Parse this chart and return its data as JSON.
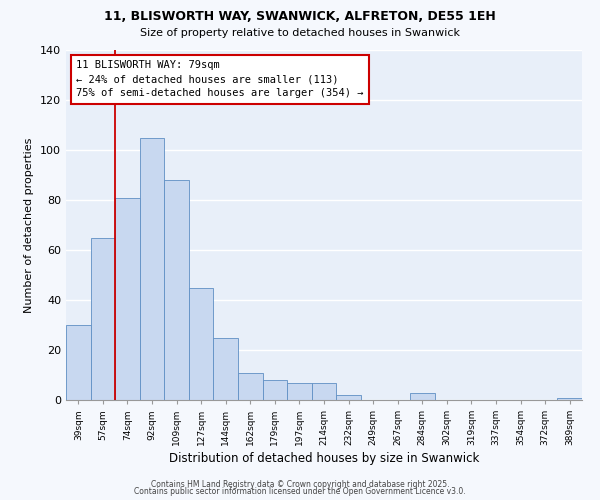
{
  "title1": "11, BLISWORTH WAY, SWANWICK, ALFRETON, DE55 1EH",
  "title2": "Size of property relative to detached houses in Swanwick",
  "xlabel": "Distribution of detached houses by size in Swanwick",
  "ylabel": "Number of detached properties",
  "bar_color": "#c8d8f0",
  "bar_edge_color": "#5f8fc4",
  "background_color": "#e8eff9",
  "grid_color": "#ffffff",
  "categories": [
    "39sqm",
    "57sqm",
    "74sqm",
    "92sqm",
    "109sqm",
    "127sqm",
    "144sqm",
    "162sqm",
    "179sqm",
    "197sqm",
    "214sqm",
    "232sqm",
    "249sqm",
    "267sqm",
    "284sqm",
    "302sqm",
    "319sqm",
    "337sqm",
    "354sqm",
    "372sqm",
    "389sqm"
  ],
  "values": [
    30,
    65,
    81,
    105,
    88,
    45,
    25,
    11,
    8,
    7,
    7,
    2,
    0,
    0,
    3,
    0,
    0,
    0,
    0,
    0,
    1
  ],
  "ylim": [
    0,
    140
  ],
  "yticks": [
    0,
    20,
    40,
    60,
    80,
    100,
    120,
    140
  ],
  "annotation_line1": "11 BLISWORTH WAY: 79sqm",
  "annotation_line2": "← 24% of detached houses are smaller (113)",
  "annotation_line3": "75% of semi-detached houses are larger (354) →",
  "annotation_box_color": "#ffffff",
  "annotation_box_edge_color": "#cc0000",
  "property_line_color": "#cc0000",
  "footer1": "Contains HM Land Registry data © Crown copyright and database right 2025.",
  "footer2": "Contains public sector information licensed under the Open Government Licence v3.0.",
  "fig_bg": "#f5f8fd"
}
